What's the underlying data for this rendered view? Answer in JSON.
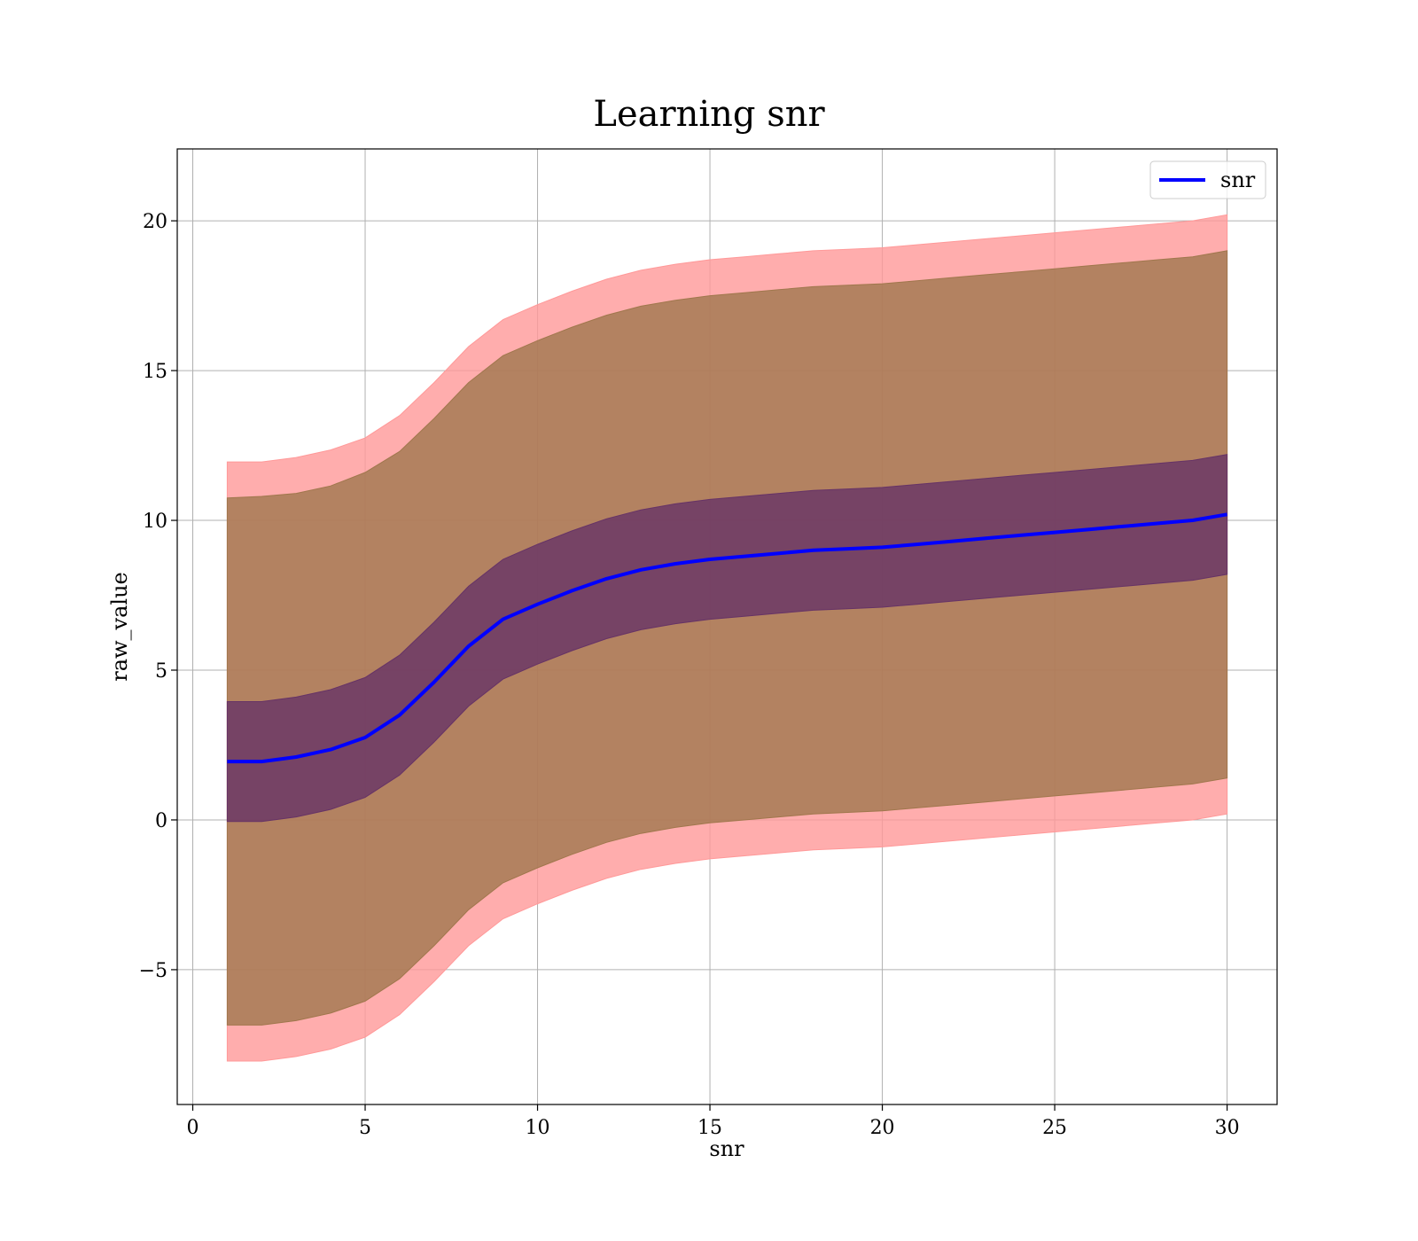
{
  "chart_data": {
    "type": "area",
    "title": "Learning snr",
    "xlabel": "snr",
    "ylabel": "raw_value",
    "xlim": [
      -0.45,
      31.45
    ],
    "ylim": [
      -9.5,
      22.4
    ],
    "grid": true,
    "legend_position": "top-right",
    "x_ticks": [
      0,
      5,
      10,
      15,
      20,
      25,
      30
    ],
    "y_ticks": [
      -5,
      0,
      5,
      10,
      15,
      20
    ],
    "x_tick_labels": [
      "0",
      "5",
      "10",
      "15",
      "20",
      "25",
      "30"
    ],
    "y_tick_labels": [
      "−5",
      "0",
      "5",
      "10",
      "15",
      "20"
    ],
    "x": [
      1,
      2,
      3,
      4,
      5,
      6,
      7,
      8,
      9,
      10,
      11,
      12,
      13,
      14,
      15,
      16,
      17,
      18,
      19,
      20,
      21,
      22,
      23,
      24,
      25,
      26,
      27,
      28,
      29,
      30
    ],
    "series": [
      {
        "name": "snr",
        "color": "#0000ff",
        "values": [
          1.95,
          1.95,
          2.1,
          2.35,
          2.75,
          3.5,
          4.6,
          5.8,
          6.7,
          7.2,
          7.65,
          8.05,
          8.35,
          8.55,
          8.7,
          8.8,
          8.9,
          9.0,
          9.05,
          9.1,
          9.2,
          9.3,
          9.4,
          9.5,
          9.6,
          9.7,
          9.8,
          9.9,
          10.0,
          10.2
        ]
      }
    ],
    "bands": [
      {
        "color": "#ff9999",
        "upper": [
          11.95,
          11.95,
          12.1,
          12.35,
          12.75,
          13.5,
          14.6,
          15.8,
          16.7,
          17.2,
          17.65,
          18.05,
          18.35,
          18.55,
          18.7,
          18.8,
          18.9,
          19.0,
          19.05,
          19.1,
          19.2,
          19.3,
          19.4,
          19.5,
          19.6,
          19.7,
          19.8,
          19.9,
          20.0,
          20.2
        ],
        "lower": [
          -8.05,
          -8.05,
          -7.9,
          -7.65,
          -7.25,
          -6.5,
          -5.4,
          -4.2,
          -3.3,
          -2.8,
          -2.35,
          -1.95,
          -1.65,
          -1.45,
          -1.3,
          -1.2,
          -1.1,
          -1.0,
          -0.95,
          -0.9,
          -0.8,
          -0.7,
          -0.6,
          -0.5,
          -0.4,
          -0.3,
          -0.2,
          -0.1,
          0.0,
          0.2
        ]
      },
      {
        "color": "#a0774d",
        "upper": [
          10.75,
          10.8,
          10.9,
          11.15,
          11.6,
          12.3,
          13.4,
          14.6,
          15.5,
          16.0,
          16.45,
          16.85,
          17.15,
          17.35,
          17.5,
          17.6,
          17.7,
          17.8,
          17.85,
          17.9,
          18.0,
          18.1,
          18.2,
          18.3,
          18.4,
          18.5,
          18.6,
          18.7,
          18.8,
          19.0
        ],
        "lower": [
          -6.85,
          -6.85,
          -6.7,
          -6.45,
          -6.05,
          -5.3,
          -4.2,
          -3.0,
          -2.1,
          -1.6,
          -1.15,
          -0.75,
          -0.45,
          -0.25,
          -0.1,
          0.0,
          0.1,
          0.2,
          0.25,
          0.3,
          0.4,
          0.5,
          0.6,
          0.7,
          0.8,
          0.9,
          1.0,
          1.1,
          1.2,
          1.4
        ]
      },
      {
        "color": "#663366",
        "upper": [
          3.95,
          3.95,
          4.1,
          4.35,
          4.75,
          5.5,
          6.6,
          7.8,
          8.7,
          9.2,
          9.65,
          10.05,
          10.35,
          10.55,
          10.7,
          10.8,
          10.9,
          11.0,
          11.05,
          11.1,
          11.2,
          11.3,
          11.4,
          11.5,
          11.6,
          11.7,
          11.8,
          11.9,
          12.0,
          12.2
        ],
        "lower": [
          -0.05,
          -0.05,
          0.1,
          0.35,
          0.75,
          1.5,
          2.6,
          3.8,
          4.7,
          5.2,
          5.65,
          6.05,
          6.35,
          6.55,
          6.7,
          6.8,
          6.9,
          7.0,
          7.05,
          7.1,
          7.2,
          7.3,
          7.4,
          7.5,
          7.6,
          7.7,
          7.8,
          7.9,
          8.0,
          8.2
        ]
      }
    ]
  }
}
